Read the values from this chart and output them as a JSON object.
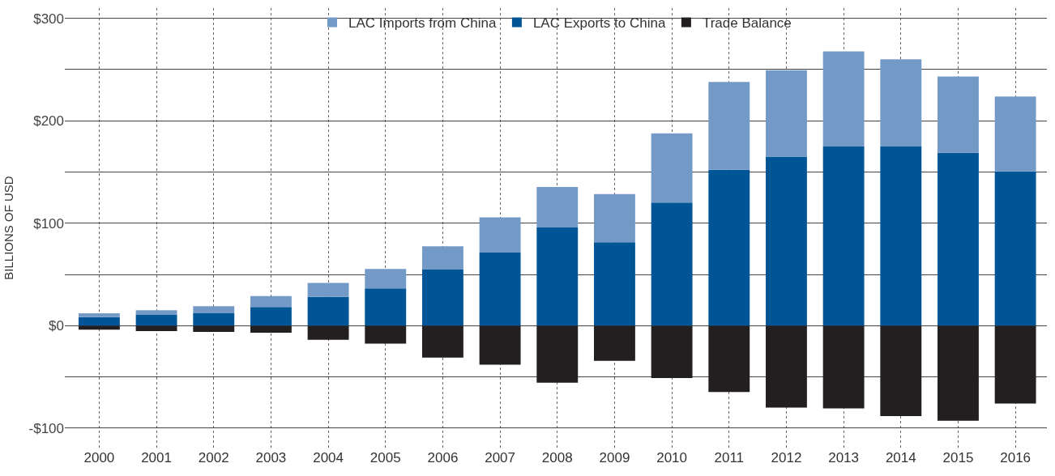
{
  "chart_data": {
    "type": "bar",
    "stacked": true,
    "ylabel": "BILLIONS OF USD",
    "categories": [
      "2000",
      "2001",
      "2002",
      "2003",
      "2004",
      "2005",
      "2006",
      "2007",
      "2008",
      "2009",
      "2010",
      "2011",
      "2012",
      "2013",
      "2014",
      "2015",
      "2016"
    ],
    "series": [
      {
        "name": "LAC Exports to China",
        "color": "#005596",
        "values": [
          8.4,
          10.6,
          12.2,
          18.3,
          28.1,
          36.5,
          54.8,
          71.5,
          95.8,
          81.4,
          120.2,
          152.1,
          165,
          174.9,
          174.9,
          168.8,
          150.6
        ]
      },
      {
        "name": "LAC Imports from China",
        "color": "#7399c6",
        "values": [
          3.8,
          4.6,
          6.8,
          10.6,
          13.7,
          19,
          22.8,
          34.2,
          39.6,
          47.1,
          67.6,
          85.9,
          84.4,
          92.8,
          85.2,
          74.5,
          73
        ]
      },
      {
        "name": "Trade Balance",
        "color": "#231f20",
        "values": [
          -3.8,
          -5.3,
          -6.1,
          -6.8,
          -13.7,
          -17.5,
          -31.2,
          -38,
          -55.5,
          -34.2,
          -51,
          -64.6,
          -79.8,
          -80.6,
          -88.2,
          -92.8,
          -76
        ]
      }
    ],
    "ylim": [
      -119,
      310
    ],
    "yticks": [
      {
        "value": -100,
        "label": "-$100"
      },
      {
        "value": -50,
        "label": null
      },
      {
        "value": 0,
        "label": "$0"
      },
      {
        "value": 50,
        "label": null
      },
      {
        "value": 100,
        "label": "$100"
      },
      {
        "value": 150,
        "label": null
      },
      {
        "value": 200,
        "label": "$200"
      },
      {
        "value": 250,
        "label": null
      },
      {
        "value": 300,
        "label": "$300"
      }
    ],
    "grid": true,
    "legend": "top"
  }
}
